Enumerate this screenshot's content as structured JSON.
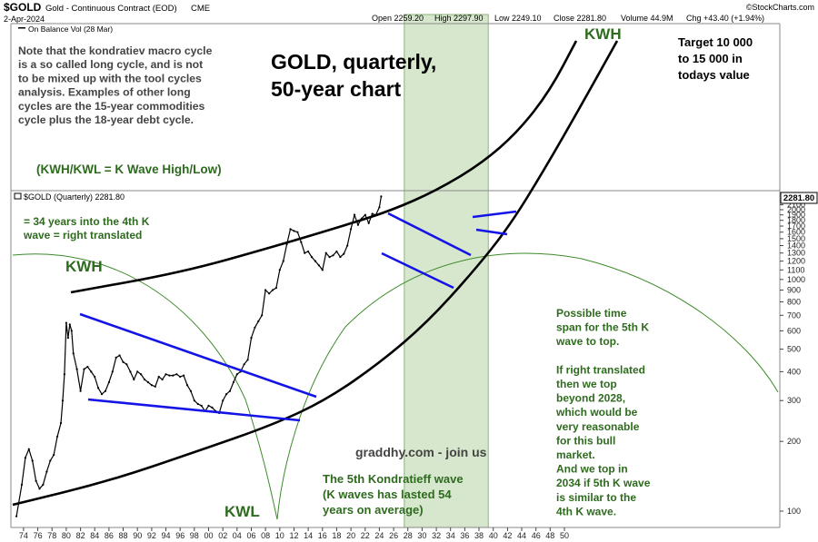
{
  "header": {
    "symbol": "$GOLD",
    "name": "Gold - Continuous Contract (EOD)",
    "exchange": "CME",
    "watermark": "©StockCharts.com",
    "date": "2-Apr-2024",
    "open": "Open 2259.20",
    "high": "High 2297.90",
    "low": "Low 2249.10",
    "close": "Close 2281.80",
    "volume": "Volume 44.9M",
    "change": "Chg +43.40 (+1.94%)"
  },
  "upper_panel": {
    "indicator_label": "On Balance Vol (28 Mar)",
    "note_lines": [
      "Note that the kondratiev macro cycle",
      "is a so called long cycle, and is not",
      "to be mixed up with the tool cycles",
      "analysis. Examples of other long",
      "cycles are the 15-year commodities",
      "cycle plus the 18-year debt cycle."
    ],
    "title_lines": [
      "GOLD, quarterly,",
      "50-year chart"
    ],
    "target_lines": [
      "Target 10 000",
      "to 15 000 in",
      "todays value"
    ],
    "kwh_top": "KWH",
    "legend_note": "(KWH/KWL = K Wave High/Low)"
  },
  "price_panel": {
    "label": "$GOLD (Quarterly) 2281.80",
    "last_price_badge": "2281.80",
    "note_4th": [
      "= 34 years into the 4th K",
      "wave = right translated"
    ],
    "kwh_left": "KWH",
    "kwl": "KWL",
    "site": "graddhy.com - join us",
    "fifth_wave_note": [
      "The 5th Kondratieff wave",
      "(K waves has lasted 54",
      "years on average)"
    ],
    "time_span_note": [
      "Possible time",
      "span for the 5th K",
      "wave to top.",
      "",
      "If right translated",
      "then we top",
      "beyond 2028,",
      "which would be",
      "very reasonable",
      "for this bull",
      "market.",
      "And we top in",
      "2034 if 5th K wave",
      "is similar to the",
      "4th K wave."
    ]
  },
  "colors": {
    "price": "#000000",
    "trendlines": "#1414e6",
    "curves": "#000000",
    "cycle_arc": "#3d8a2a",
    "annotation_green": "#2e6b1e",
    "zone_fill": "#cfe3c4",
    "zone_border": "#8fb57e"
  },
  "chart_data": {
    "type": "line",
    "series": [
      {
        "name": "$GOLD (Quarterly)",
        "x": [
          1973.0,
          1973.75,
          1974.25,
          1974.75,
          1975.25,
          1975.75,
          1976.25,
          1976.75,
          1977.25,
          1977.75,
          1978.25,
          1978.75,
          1979.25,
          1979.5,
          1979.75,
          1980.0,
          1980.25,
          1980.5,
          1980.75,
          1981.0,
          1981.5,
          1982.0,
          1982.5,
          1983.0,
          1983.5,
          1984.0,
          1984.5,
          1985.0,
          1985.5,
          1986.0,
          1986.5,
          1987.0,
          1987.5,
          1988.0,
          1988.5,
          1989.0,
          1989.5,
          1990.0,
          1990.5,
          1991.0,
          1991.5,
          1992.0,
          1992.5,
          1993.0,
          1993.5,
          1994.0,
          1994.5,
          1995.0,
          1995.5,
          1996.0,
          1996.5,
          1997.0,
          1997.5,
          1998.0,
          1998.5,
          1999.0,
          1999.5,
          2000.0,
          2000.5,
          2001.0,
          2001.5,
          2002.0,
          2002.5,
          2003.0,
          2003.5,
          2004.0,
          2004.5,
          2005.0,
          2005.5,
          2006.0,
          2006.5,
          2007.0,
          2007.5,
          2008.0,
          2008.5,
          2009.0,
          2009.5,
          2010.0,
          2010.5,
          2011.0,
          2011.5,
          2012.0,
          2012.5,
          2013.0,
          2013.5,
          2014.0,
          2014.5,
          2015.0,
          2015.5,
          2016.0,
          2016.5,
          2017.0,
          2017.5,
          2018.0,
          2018.5,
          2019.0,
          2019.5,
          2020.0,
          2020.5,
          2021.0,
          2021.5,
          2022.0,
          2022.5,
          2023.0,
          2023.5,
          2024.0,
          2024.25
        ],
        "values": [
          95,
          130,
          170,
          185,
          165,
          135,
          125,
          130,
          148,
          165,
          175,
          210,
          240,
          300,
          390,
          650,
          560,
          640,
          600,
          480,
          410,
          330,
          410,
          420,
          400,
          380,
          340,
          320,
          330,
          360,
          400,
          460,
          470,
          440,
          430,
          400,
          370,
          400,
          390,
          370,
          360,
          350,
          345,
          380,
          370,
          390,
          385,
          385,
          390,
          380,
          385,
          350,
          330,
          300,
          290,
          285,
          270,
          285,
          280,
          270,
          265,
          300,
          320,
          330,
          360,
          390,
          400,
          430,
          450,
          560,
          620,
          660,
          700,
          900,
          870,
          900,
          920,
          1100,
          1200,
          1420,
          1650,
          1620,
          1600,
          1450,
          1300,
          1320,
          1250,
          1200,
          1150,
          1100,
          1300,
          1250,
          1270,
          1320,
          1250,
          1290,
          1400,
          1650,
          1900,
          1720,
          1830,
          1900,
          1750,
          1920,
          1900,
          2050,
          2281.8
        ]
      }
    ],
    "y_scale": "log",
    "ylim": [
      80,
      2500
    ],
    "xlim": [
      1973,
      2051
    ],
    "y_ticks": [
      100,
      200,
      300,
      400,
      500,
      600,
      700,
      800,
      900,
      1000,
      1100,
      1200,
      1300,
      1400,
      1500,
      1600,
      1700,
      1800,
      1900,
      2000,
      2100
    ],
    "x_ticks": [
      "74",
      "76",
      "78",
      "80",
      "82",
      "84",
      "86",
      "88",
      "90",
      "92",
      "94",
      "96",
      "98",
      "00",
      "02",
      "04",
      "06",
      "08",
      "10",
      "12",
      "14",
      "16",
      "18",
      "20",
      "22",
      "24",
      "26",
      "28",
      "30",
      "32",
      "34",
      "36",
      "38",
      "40",
      "42",
      "44",
      "46",
      "48",
      "50"
    ],
    "highlight_zone": [
      2027.5,
      2039.3
    ]
  }
}
